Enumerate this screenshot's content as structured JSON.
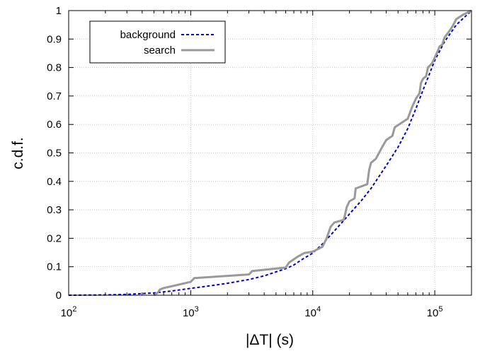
{
  "chart_data": {
    "type": "line",
    "xlabel": "|ΔT| (s)",
    "ylabel": "c.d.f.",
    "xscale": "log",
    "xlim": [
      100,
      200000
    ],
    "ylim": [
      0,
      1
    ],
    "grid": true,
    "legend_position": "top-left",
    "x_ticks": [
      {
        "value": 100,
        "base": "10",
        "exp": "2"
      },
      {
        "value": 1000,
        "base": "10",
        "exp": "3"
      },
      {
        "value": 10000,
        "base": "10",
        "exp": "4"
      },
      {
        "value": 100000,
        "base": "10",
        "exp": "5"
      }
    ],
    "y_ticks": [
      {
        "value": 0,
        "label": "0"
      },
      {
        "value": 0.1,
        "label": "0.1"
      },
      {
        "value": 0.2,
        "label": "0.2"
      },
      {
        "value": 0.3,
        "label": "0.3"
      },
      {
        "value": 0.4,
        "label": "0.4"
      },
      {
        "value": 0.5,
        "label": "0.5"
      },
      {
        "value": 0.6,
        "label": "0.6"
      },
      {
        "value": 0.7,
        "label": "0.7"
      },
      {
        "value": 0.8,
        "label": "0.8"
      },
      {
        "value": 0.9,
        "label": "0.9"
      },
      {
        "value": 1,
        "label": "1"
      }
    ],
    "series": [
      {
        "name": "background",
        "color": "#0000cc",
        "style": "dashed",
        "points": [
          [
            100,
            0
          ],
          [
            200,
            0.001
          ],
          [
            300,
            0.003
          ],
          [
            500,
            0.008
          ],
          [
            700,
            0.015
          ],
          [
            1000,
            0.024
          ],
          [
            1500,
            0.034
          ],
          [
            2000,
            0.042
          ],
          [
            3000,
            0.055
          ],
          [
            4000,
            0.068
          ],
          [
            5000,
            0.082
          ],
          [
            6000,
            0.093
          ],
          [
            7000,
            0.106
          ],
          [
            8000,
            0.123
          ],
          [
            10000,
            0.148
          ],
          [
            12000,
            0.18
          ],
          [
            15000,
            0.225
          ],
          [
            20000,
            0.285
          ],
          [
            25000,
            0.332
          ],
          [
            30000,
            0.375
          ],
          [
            40000,
            0.455
          ],
          [
            50000,
            0.52
          ],
          [
            60000,
            0.585
          ],
          [
            70000,
            0.655
          ],
          [
            80000,
            0.72
          ],
          [
            90000,
            0.775
          ],
          [
            100000,
            0.825
          ],
          [
            120000,
            0.89
          ],
          [
            150000,
            0.95
          ],
          [
            200000,
            1.0
          ]
        ]
      },
      {
        "name": "search",
        "color": "#999999",
        "style": "solid",
        "points": [
          [
            500,
            0
          ],
          [
            540,
            0.01
          ],
          [
            560,
            0.02
          ],
          [
            600,
            0.025
          ],
          [
            1000,
            0.047
          ],
          [
            1070,
            0.06
          ],
          [
            3000,
            0.073
          ],
          [
            3200,
            0.085
          ],
          [
            6000,
            0.097
          ],
          [
            6400,
            0.115
          ],
          [
            7500,
            0.135
          ],
          [
            8500,
            0.148
          ],
          [
            10000,
            0.153
          ],
          [
            12000,
            0.17
          ],
          [
            13000,
            0.2
          ],
          [
            14000,
            0.24
          ],
          [
            15000,
            0.255
          ],
          [
            18000,
            0.265
          ],
          [
            19000,
            0.31
          ],
          [
            20000,
            0.33
          ],
          [
            22000,
            0.34
          ],
          [
            22500,
            0.375
          ],
          [
            28000,
            0.39
          ],
          [
            29000,
            0.44
          ],
          [
            30000,
            0.465
          ],
          [
            33000,
            0.48
          ],
          [
            37000,
            0.52
          ],
          [
            40000,
            0.545
          ],
          [
            45000,
            0.56
          ],
          [
            47000,
            0.59
          ],
          [
            60000,
            0.62
          ],
          [
            65000,
            0.66
          ],
          [
            70000,
            0.69
          ],
          [
            75000,
            0.71
          ],
          [
            77000,
            0.745
          ],
          [
            80000,
            0.76
          ],
          [
            85000,
            0.77
          ],
          [
            88000,
            0.8
          ],
          [
            95000,
            0.815
          ],
          [
            100000,
            0.835
          ],
          [
            105000,
            0.855
          ],
          [
            110000,
            0.875
          ],
          [
            115000,
            0.88
          ],
          [
            120000,
            0.905
          ],
          [
            130000,
            0.925
          ],
          [
            140000,
            0.945
          ],
          [
            150000,
            0.97
          ],
          [
            170000,
            0.985
          ],
          [
            200000,
            1.0
          ]
        ]
      }
    ]
  }
}
